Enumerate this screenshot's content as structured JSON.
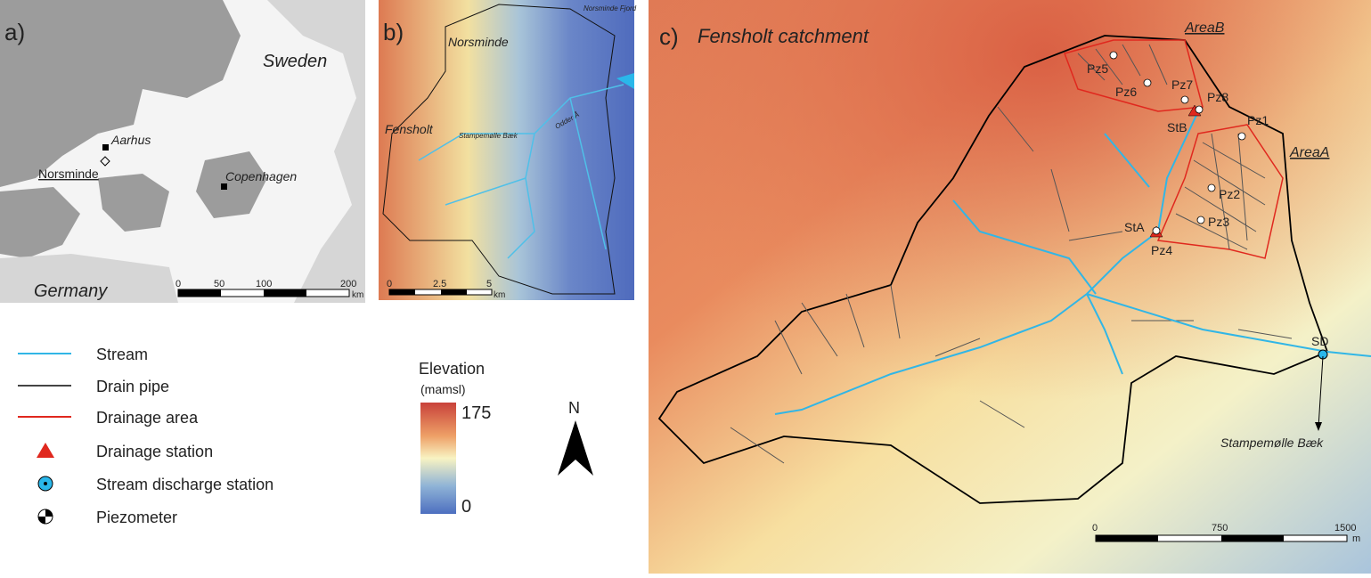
{
  "panel_a": {
    "label": "a)",
    "places": {
      "sweden": "Sweden",
      "aarhus": "Aarhus",
      "norsminde": "Norsminde",
      "copenhagen": "Copenhagen",
      "germany": "Germany"
    },
    "scale": {
      "ticks": [
        0,
        50,
        100,
        200
      ],
      "unit": "km"
    }
  },
  "panel_b": {
    "label": "b)",
    "places": {
      "norsminde": "Norsminde",
      "fjord": "Norsminde Fjord",
      "fensholt": "Fensholt",
      "stampemolle": "Stampemølle Bæk",
      "odder": "Odder Å"
    },
    "scale": {
      "ticks": [
        0,
        2.5,
        5
      ],
      "unit": "km"
    }
  },
  "panel_c": {
    "label": "c)",
    "title": "Fensholt catchment",
    "areas": [
      "AreaB",
      "AreaA"
    ],
    "piezometers": [
      "Pz1",
      "Pz2",
      "Pz3",
      "Pz4",
      "Pz5",
      "Pz6",
      "Pz7",
      "Pz8"
    ],
    "stations": [
      "StA",
      "StB",
      "SD"
    ],
    "stream": "Stampemølle Bæk",
    "scale": {
      "ticks": [
        0,
        750,
        1500
      ],
      "unit": "m"
    }
  },
  "legend": {
    "items": [
      "Stream",
      "Drain pipe",
      "Drainage area",
      "Drainage station",
      "Stream discharge station",
      "Piezometer"
    ]
  },
  "elevation": {
    "title": "Elevation",
    "unit": "(mamsl)",
    "max": 175,
    "min": 0
  },
  "north": "N"
}
